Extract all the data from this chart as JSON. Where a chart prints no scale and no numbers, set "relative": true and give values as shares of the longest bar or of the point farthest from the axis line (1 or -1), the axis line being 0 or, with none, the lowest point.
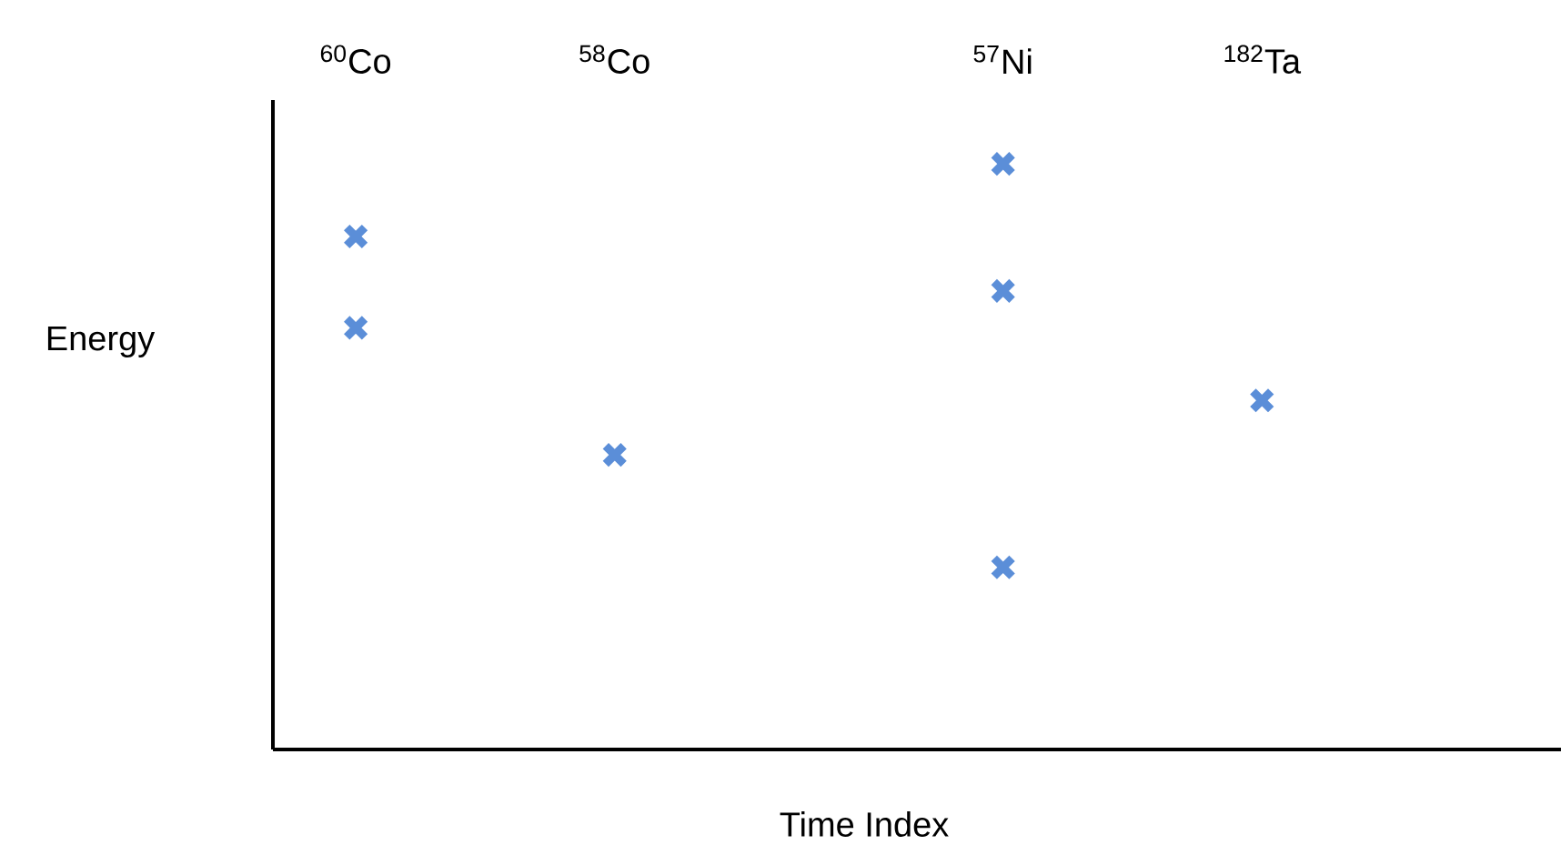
{
  "chart_data": {
    "type": "scatter",
    "xlabel": "Time Index",
    "ylabel": "Energy",
    "relative": true,
    "marker": "cross",
    "categories": [
      "$^{60}$Co",
      null,
      "$^{58}$Co",
      null,
      null,
      "$^{57}$Ni",
      null,
      "$^{182}$Ta"
    ],
    "series": [
      {
        "color": "#5b8ed8",
        "values": [
          0.876,
          null,
          0.503,
          null,
          null,
          1,
          null,
          0.596
        ]
      },
      {
        "color": "#5b8ed8",
        "values": [
          0.72,
          null,
          null,
          null,
          null,
          0.783,
          null,
          null
        ]
      },
      {
        "color": "#5b8ed8",
        "values": [
          null,
          null,
          null,
          null,
          null,
          0.311,
          null,
          null
        ]
      }
    ]
  }
}
